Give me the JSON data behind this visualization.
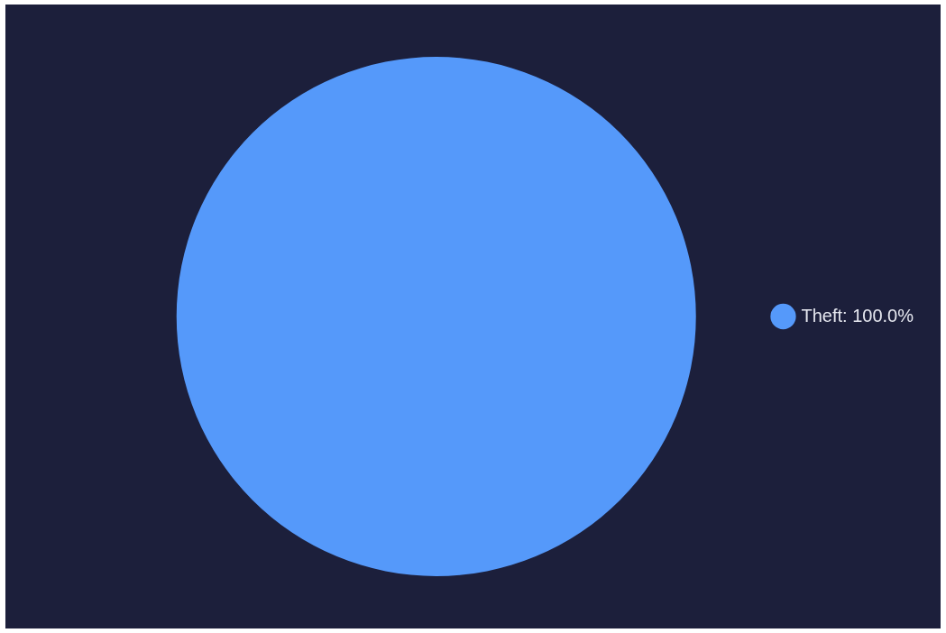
{
  "chart_data": {
    "type": "pie",
    "categories": [
      "Theft"
    ],
    "values": [
      100
    ],
    "colors": [
      "#5599fa"
    ],
    "value_labels": [
      "100.0%"
    ],
    "legend": "right"
  }
}
